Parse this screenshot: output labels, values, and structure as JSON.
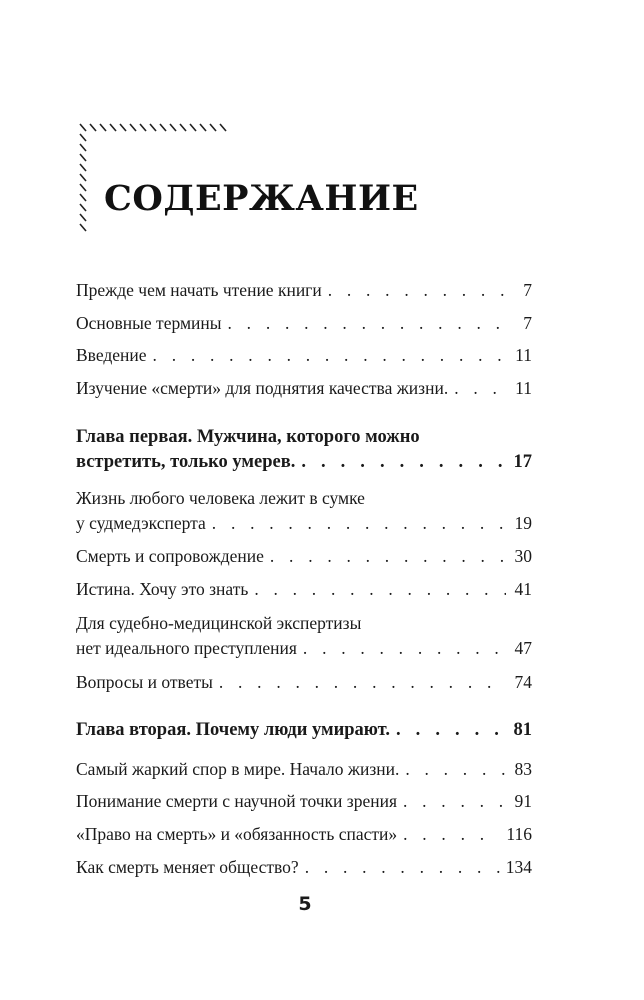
{
  "heading": "СОДЕРЖАНИЕ",
  "page_number": "5",
  "entries": [
    {
      "lines": [],
      "last": "Прежде чем начать чтение книги",
      "page": "7",
      "bold": false
    },
    {
      "lines": [],
      "last": "Основные термины",
      "page": "7",
      "bold": false
    },
    {
      "lines": [],
      "last": "Введение",
      "page": "11",
      "bold": false
    },
    {
      "lines": [],
      "last": "Изучение «смерти» для поднятия качества жизни.",
      "page": "11",
      "bold": false
    },
    {
      "lines": [
        "Глава первая. Мужчина, которого можно"
      ],
      "last": "встретить, только умерев.",
      "page": "17",
      "bold": true
    },
    {
      "lines": [
        "Жизнь любого человека лежит в сумке"
      ],
      "last": "у судмедэксперта",
      "page": "19",
      "bold": false
    },
    {
      "lines": [],
      "last": "Смерть и сопровождение",
      "page": "30",
      "bold": false
    },
    {
      "lines": [],
      "last": "Истина. Хочу это знать",
      "page": "41",
      "bold": false
    },
    {
      "lines": [
        "Для судебно-медицинской экспертизы"
      ],
      "last": "нет идеального преступления",
      "page": "47",
      "bold": false
    },
    {
      "lines": [],
      "last": "Вопросы и ответы",
      "page": "74",
      "bold": false
    },
    {
      "lines": [],
      "last": "Глава вторая. Почему люди умирают.",
      "page": "81",
      "bold": true
    },
    {
      "lines": [],
      "last": "Самый жаркий спор в мире. Начало жизни.",
      "page": "83",
      "bold": false
    },
    {
      "lines": [],
      "last": "Понимание смерти с научной точки зрения",
      "page": "91",
      "bold": false
    },
    {
      "lines": [],
      "last": "«Право на смерть» и «обязанность спасти»",
      "page": "116",
      "bold": false
    },
    {
      "lines": [],
      "last": "Как смерть меняет общество?",
      "page": "134",
      "bold": false
    }
  ]
}
